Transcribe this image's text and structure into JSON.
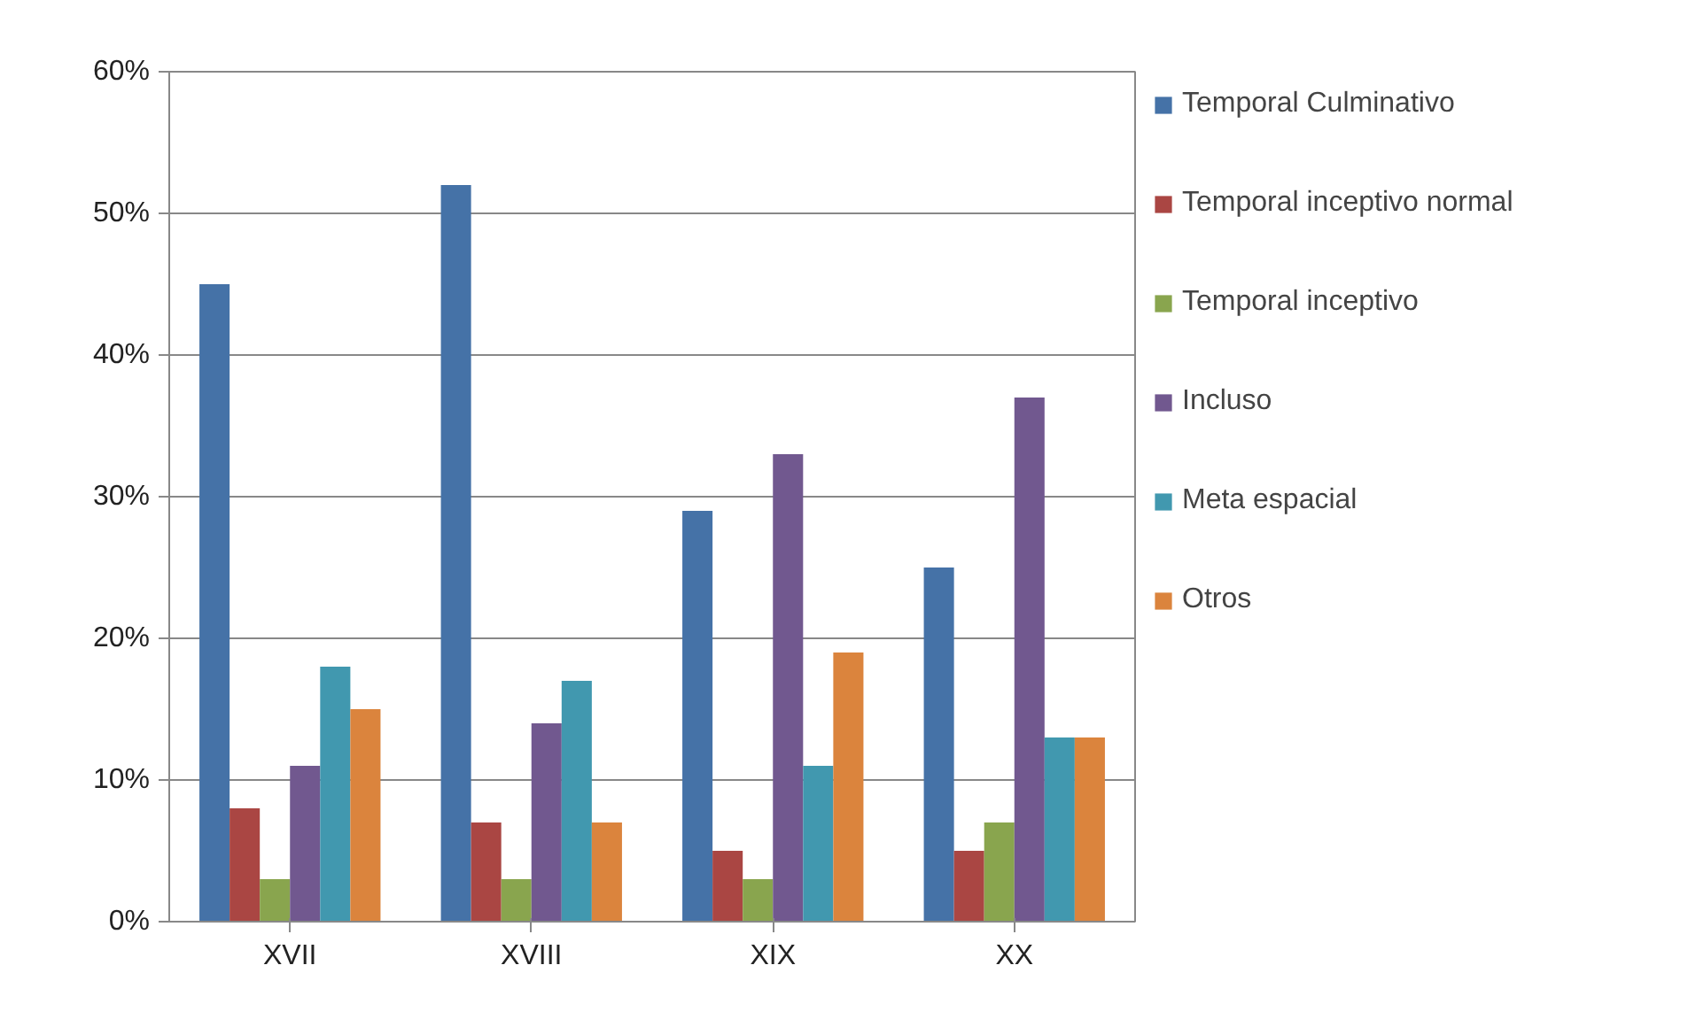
{
  "chart_data": {
    "type": "bar",
    "categories": [
      "XVII",
      "XVIII",
      "XIX",
      "XX"
    ],
    "series": [
      {
        "name": "Temporal Culminativo",
        "color": "#4572a7",
        "values": [
          45,
          52,
          29,
          25
        ]
      },
      {
        "name": "Temporal inceptivo normal",
        "color": "#aa4643",
        "values": [
          8,
          7,
          5,
          5
        ]
      },
      {
        "name": "Temporal inceptivo",
        "color": "#89a54e",
        "values": [
          3,
          3,
          3,
          7
        ]
      },
      {
        "name": "Incluso",
        "color": "#71588f",
        "values": [
          11,
          14,
          33,
          37
        ]
      },
      {
        "name": "Meta espacial",
        "color": "#4198af",
        "values": [
          18,
          17,
          11,
          13
        ]
      },
      {
        "name": "Otros",
        "color": "#db843d",
        "values": [
          15,
          7,
          19,
          13
        ]
      }
    ],
    "ylim": [
      0,
      60
    ],
    "yticks": [
      {
        "value": 0,
        "label": "0%"
      },
      {
        "value": 10,
        "label": "10%"
      },
      {
        "value": 20,
        "label": "20%"
      },
      {
        "value": 30,
        "label": "30%"
      },
      {
        "value": 40,
        "label": "40%"
      },
      {
        "value": 50,
        "label": "50%"
      },
      {
        "value": 60,
        "label": "60%"
      }
    ],
    "grid": "y",
    "legend": "right"
  }
}
